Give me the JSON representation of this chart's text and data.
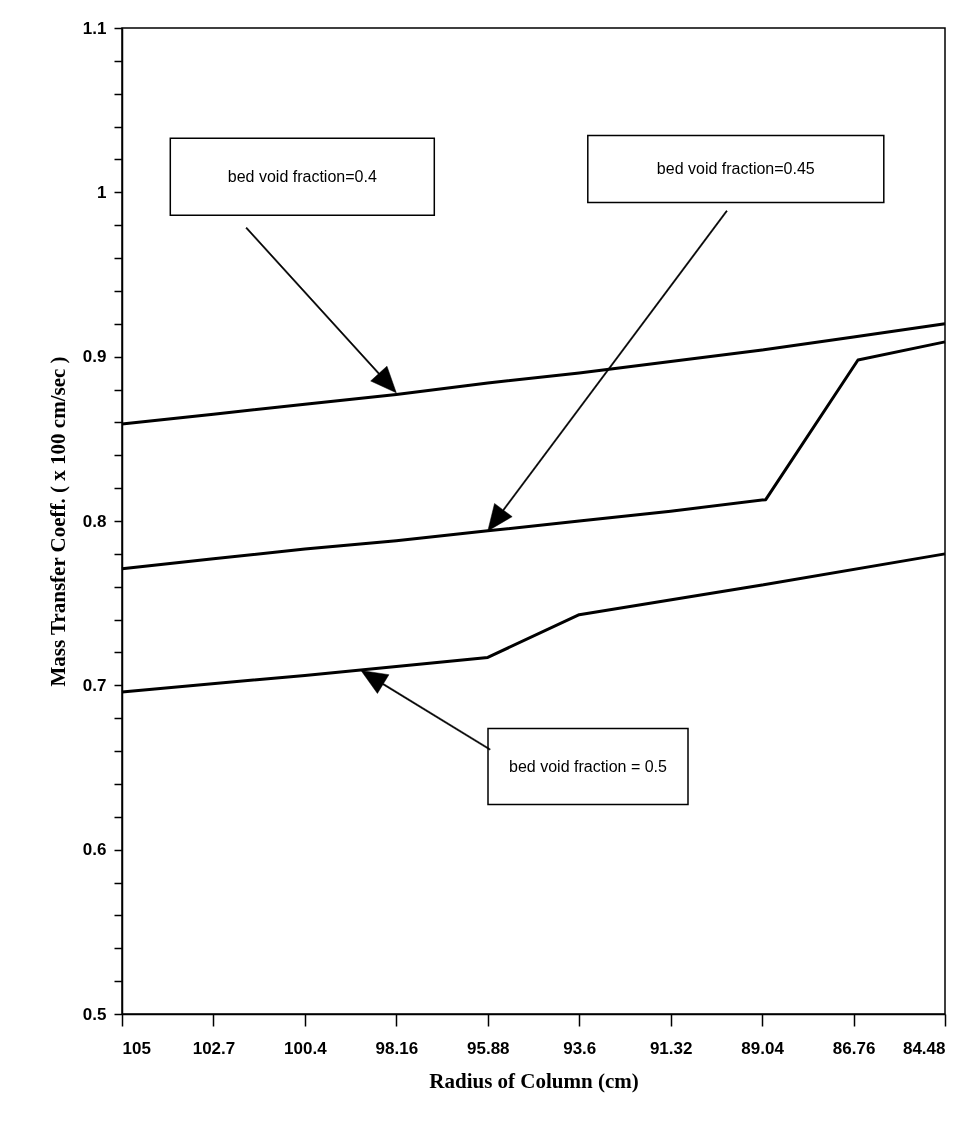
{
  "chart_data": {
    "type": "line",
    "xlabel": "Radius of Column   (cm)",
    "ylabel": "Mass Transfer Coeff.   ( x 100 cm/sec )",
    "xlim": [
      105,
      84.48
    ],
    "xticks": [
      105,
      {
        "value": 102.72,
        "label": "102.7"
      },
      {
        "value": 100.44,
        "label": "100.4"
      },
      98.16,
      95.88,
      93.6,
      91.32,
      89.04,
      86.76,
      84.48
    ],
    "ylim": [
      0.5,
      1.1
    ],
    "yticks": [
      0.5,
      {
        "value": 0.52,
        "label": null
      },
      {
        "value": 0.54,
        "label": null
      },
      {
        "value": 0.56,
        "label": null
      },
      {
        "value": 0.58,
        "label": null
      },
      0.6,
      {
        "value": 0.62,
        "label": null
      },
      {
        "value": 0.64,
        "label": null
      },
      {
        "value": 0.66,
        "label": null
      },
      {
        "value": 0.68,
        "label": null
      },
      0.7,
      {
        "value": 0.72,
        "label": null
      },
      {
        "value": 0.74,
        "label": null
      },
      {
        "value": 0.76,
        "label": null
      },
      {
        "value": 0.78,
        "label": null
      },
      0.8,
      {
        "value": 0.82,
        "label": null
      },
      {
        "value": 0.84,
        "label": null
      },
      {
        "value": 0.86,
        "label": null
      },
      {
        "value": 0.88,
        "label": null
      },
      0.9,
      {
        "value": 0.92,
        "label": null
      },
      {
        "value": 0.94,
        "label": null
      },
      {
        "value": 0.96,
        "label": null
      },
      {
        "value": 0.98,
        "label": null
      },
      1,
      {
        "value": 1.02,
        "label": null
      },
      {
        "value": 1.04,
        "label": null
      },
      {
        "value": 1.06,
        "label": null
      },
      {
        "value": 1.08,
        "label": null
      },
      1.1
    ],
    "grid": false,
    "marker": "none",
    "line_style": "solid",
    "series": [
      {
        "color": "#000000",
        "x": [
          105,
          102.72,
          100.44,
          98.16,
          95.88,
          93.6,
          91.32,
          89.04,
          86.76,
          84.48
        ],
        "values": [
          0.859,
          0.865,
          0.871,
          0.877,
          0.884,
          0.89,
          0.897,
          0.904,
          0.912,
          0.92
        ]
      },
      {
        "color": "#000000",
        "x": [
          105,
          102.72,
          100.44,
          98.16,
          95.88,
          93.6,
          91.32,
          88.95,
          86.65,
          84.48
        ],
        "values": [
          0.771,
          0.777,
          0.783,
          0.788,
          0.794,
          0.8,
          0.806,
          0.813,
          0.898,
          0.909
        ]
      },
      {
        "color": "#000000",
        "x": [
          105,
          100.44,
          95.88,
          93.6,
          89.04,
          84.48
        ],
        "values": [
          0.696,
          0.706,
          0.717,
          0.743,
          0.761,
          0.78
        ]
      }
    ],
    "annotations": [
      "bed void fraction=0.4",
      "bed void fraction=0.45",
      "bed void fraction = 0.5"
    ]
  }
}
